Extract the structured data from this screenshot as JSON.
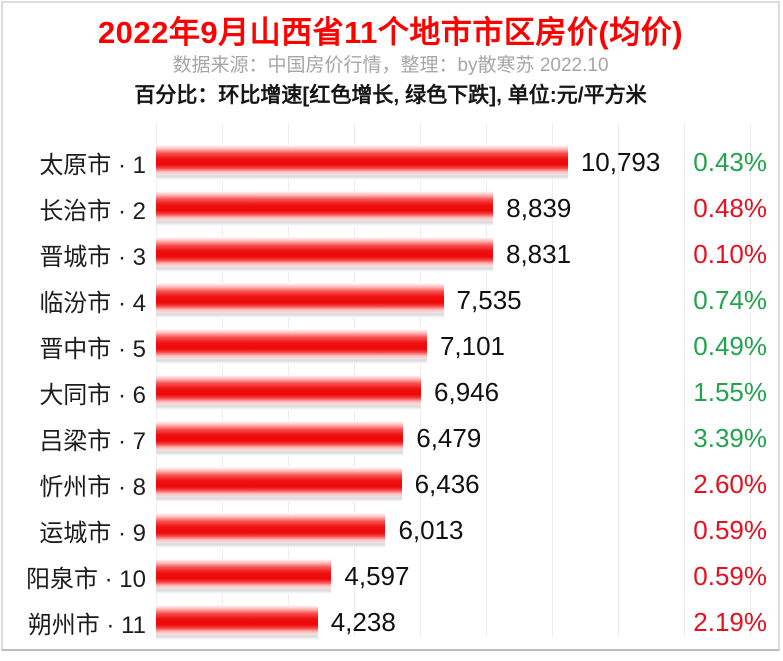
{
  "header": {
    "title": "2022年9月山西省11个地市市区房价(均价)",
    "subtitle": "数据来源：中国房价行情，整理：by散寒苏 2022.10",
    "note": "百分比：环比增速[红色增长, 绿色下跌], 单位:元/平方米"
  },
  "colors": {
    "title_red": "#fe0000",
    "subtitle_gray": "#a6a6a6",
    "bar_red": "#ee1111",
    "increase_red": "#e8101f",
    "decrease_green": "#22a44e",
    "gridline_gray": "#ececec",
    "frame_gray": "#dcdcdc"
  },
  "chart_data": {
    "type": "bar",
    "orientation": "horizontal",
    "title": "2022年9月山西省11个地市市区房价(均价)",
    "unit": "元/平方米",
    "xlim": [
      0,
      16300
    ],
    "grid": true,
    "legend": "none",
    "categories": [
      "太原市 · 1",
      "长治市 · 2",
      "晋城市 · 3",
      "临汾市 · 4",
      "晋中市 · 5",
      "大同市 · 6",
      "吕梁市 · 7",
      "忻州市 · 8",
      "运城市 · 9",
      "阳泉市 · 10",
      "朔州市 · 11"
    ],
    "values": [
      10793,
      8839,
      8831,
      7535,
      7101,
      6946,
      6479,
      6436,
      6013,
      4597,
      4238
    ],
    "value_labels": [
      "10,793",
      "8,839",
      "8,831",
      "7,535",
      "7,101",
      "6,946",
      "6,479",
      "6,436",
      "6,013",
      "4,597",
      "4,238"
    ],
    "change_labels": [
      "0.43%",
      "0.48%",
      "0.10%",
      "0.74%",
      "0.49%",
      "1.55%",
      "3.39%",
      "2.60%",
      "0.59%",
      "0.59%",
      "2.19%"
    ],
    "change_directions": [
      "down",
      "up",
      "up",
      "down",
      "down",
      "down",
      "down",
      "up",
      "up",
      "up",
      "up"
    ]
  }
}
